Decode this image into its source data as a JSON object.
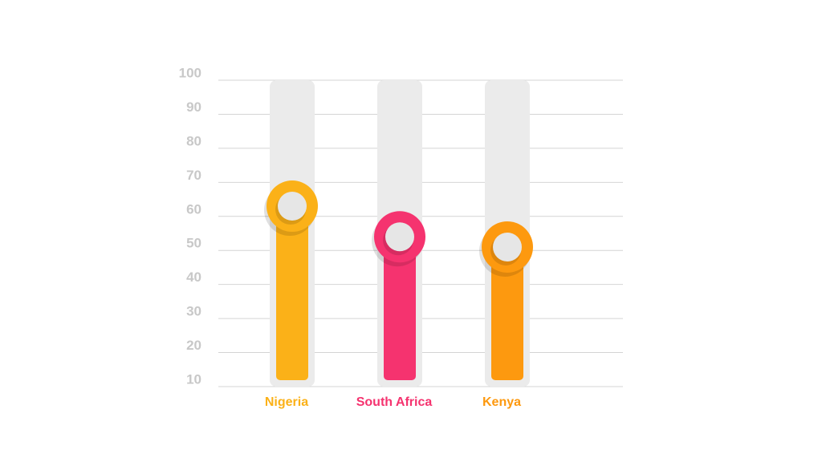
{
  "chart_data": {
    "type": "bar",
    "categories": [
      "Nigeria",
      "South Africa",
      "Kenya"
    ],
    "values": [
      63,
      54,
      51
    ],
    "colors": [
      "#fbb118",
      "#f5336f",
      "#fd990f"
    ],
    "ylim": [
      10,
      100
    ],
    "yticks": [
      10,
      20,
      30,
      40,
      50,
      60,
      70,
      80,
      90,
      100
    ],
    "grid": true
  }
}
